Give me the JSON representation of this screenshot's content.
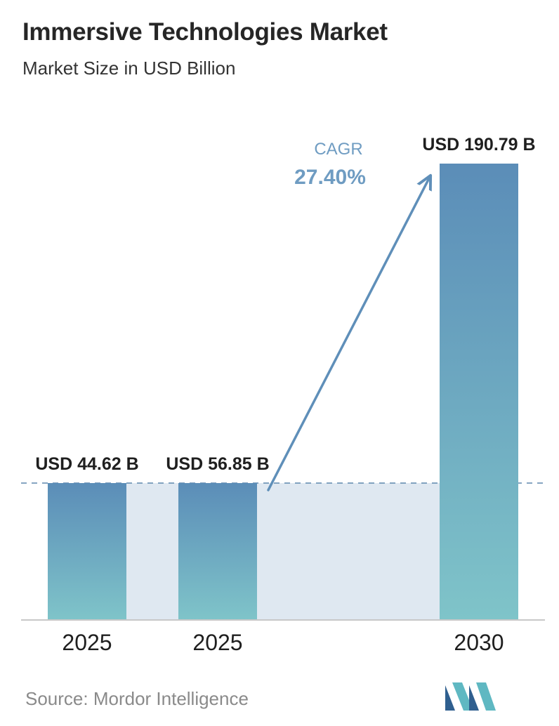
{
  "header": {
    "title": "Immersive Technologies Market",
    "subtitle": "Market Size in USD Billion"
  },
  "chart_data": {
    "type": "bar",
    "categories": [
      "2025",
      "2025",
      "2030"
    ],
    "values": [
      44.62,
      56.85,
      190.79
    ],
    "value_labels": [
      "USD 44.62 B",
      "USD 56.85 B",
      "USD 190.79 B"
    ],
    "title": "Immersive Technologies Market",
    "subtitle": "Market Size in USD Billion",
    "xlabel": "",
    "ylabel": "",
    "ylim": [
      0,
      190.79
    ],
    "grid": false,
    "legend": "none",
    "annotation": {
      "label": "CAGR",
      "value": "27.40%"
    },
    "colors": {
      "bar_top": "#5b8db8",
      "bar_bottom": "#7fc4c9",
      "band": "#dfe8f1",
      "arrow": "#5f8fb9",
      "cagr_label": "#6f9cc2"
    }
  },
  "footer": {
    "source": "Source: Mordor Intelligence",
    "logo_icon": "mordor-intelligence-logo-icon"
  }
}
